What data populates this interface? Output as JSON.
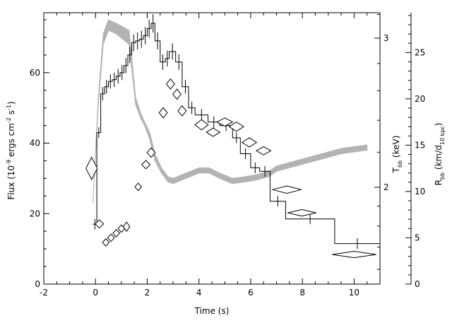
{
  "chart_data": {
    "type": "line",
    "xlabel": "Time (s)",
    "xlim": [
      -2,
      11
    ],
    "x_ticks": [
      -2,
      0,
      2,
      4,
      6,
      8,
      10
    ],
    "axes": {
      "flux": {
        "label_main": "Flux (10",
        "label_exp1": "-9",
        "label_mid": " ergs cm",
        "label_exp2": "-2",
        "label_mid2": " s",
        "label_exp3": "-1",
        "label_end": ")",
        "ylim": [
          0,
          77
        ],
        "ticks": [
          0,
          20,
          40,
          60
        ]
      },
      "tbb": {
        "label_main": "T",
        "label_sub": "bb",
        "label_end": " (keV)",
        "ticks": [
          2,
          3
        ]
      },
      "rbb": {
        "label_main": "R",
        "label_sub1": "bb",
        "label_mid": " (km/d",
        "label_sub2": "10 kpc",
        "label_end": ")",
        "ylim": [
          0,
          29.3
        ],
        "ticks": [
          0,
          5,
          10,
          15,
          20,
          25
        ]
      }
    },
    "series": [
      {
        "style": "histogram",
        "color": "#000000",
        "steps": [
          [
            -0.1,
            0.05,
            17
          ],
          [
            0.05,
            0.2,
            43
          ],
          [
            0.2,
            0.35,
            54
          ],
          [
            0.35,
            0.5,
            56
          ],
          [
            0.5,
            0.65,
            57.5
          ],
          [
            0.65,
            0.8,
            58
          ],
          [
            0.8,
            0.95,
            59
          ],
          [
            0.95,
            1.1,
            60
          ],
          [
            1.1,
            1.25,
            62
          ],
          [
            1.25,
            1.4,
            65
          ],
          [
            1.4,
            1.55,
            68.5
          ],
          [
            1.55,
            1.7,
            69
          ],
          [
            1.7,
            1.85,
            69.5
          ],
          [
            1.85,
            2.0,
            70.5
          ],
          [
            2.0,
            2.15,
            72.5
          ],
          [
            2.15,
            2.3,
            74
          ],
          [
            2.3,
            2.5,
            69
          ],
          [
            2.5,
            2.7,
            63
          ],
          [
            2.7,
            2.85,
            64
          ],
          [
            2.85,
            3.1,
            66
          ],
          [
            3.1,
            3.35,
            63
          ],
          [
            3.35,
            3.6,
            56
          ],
          [
            3.6,
            3.85,
            50
          ],
          [
            3.85,
            4.35,
            48
          ],
          [
            4.35,
            4.8,
            46
          ],
          [
            4.8,
            5.3,
            45
          ],
          [
            5.3,
            5.6,
            41.5
          ],
          [
            5.6,
            6.0,
            37
          ],
          [
            6.0,
            6.35,
            33
          ],
          [
            6.35,
            6.75,
            32
          ],
          [
            6.75,
            7.35,
            23.5
          ],
          [
            7.35,
            9.25,
            18.5
          ],
          [
            9.25,
            11.0,
            11.5
          ]
        ]
      },
      {
        "style": "band",
        "color": "#b3b3b3",
        "axis": "tbb_flux_units",
        "points": [
          [
            -0.1,
            23,
            23
          ],
          [
            0.1,
            50,
            52
          ],
          [
            0.3,
            68,
            71
          ],
          [
            0.5,
            72,
            75
          ],
          [
            0.8,
            71,
            74
          ],
          [
            1.05,
            69.5,
            73
          ],
          [
            1.3,
            68,
            72
          ],
          [
            1.55,
            51,
            53
          ],
          [
            1.75,
            47,
            48.5
          ],
          [
            1.9,
            45,
            46
          ],
          [
            2.1,
            41,
            43
          ],
          [
            2.3,
            35,
            37
          ],
          [
            2.55,
            31.5,
            33
          ],
          [
            2.8,
            29,
            30.5
          ],
          [
            3.0,
            28.5,
            30
          ],
          [
            3.5,
            30,
            31.5
          ],
          [
            4.0,
            31.5,
            33
          ],
          [
            4.4,
            31.5,
            33
          ],
          [
            4.8,
            30,
            31.5
          ],
          [
            5.3,
            28.5,
            30
          ],
          [
            5.8,
            29,
            30.5
          ],
          [
            6.2,
            29.5,
            31
          ],
          [
            6.7,
            30.5,
            32
          ],
          [
            7.0,
            32,
            33.5
          ],
          [
            7.5,
            33,
            34.5
          ],
          [
            8.0,
            34,
            35.5
          ],
          [
            8.5,
            35,
            36.5
          ],
          [
            9.0,
            36,
            37.5
          ],
          [
            9.5,
            37,
            38.5
          ],
          [
            10.0,
            37.5,
            39
          ],
          [
            10.5,
            38,
            39.5
          ]
        ]
      },
      {
        "style": "diamonds",
        "color": "#000000",
        "axis": "rbb",
        "points": [
          [
            -0.15,
            12.5,
            0.22,
            1.2
          ],
          [
            0.15,
            6.5,
            0.16,
            0.45
          ],
          [
            0.4,
            4.5,
            0.13,
            0.4
          ],
          [
            0.6,
            5.0,
            0.13,
            0.4
          ],
          [
            0.8,
            5.5,
            0.13,
            0.4
          ],
          [
            1.0,
            6.0,
            0.13,
            0.4
          ],
          [
            1.2,
            6.2,
            0.13,
            0.5
          ],
          [
            1.65,
            10.5,
            0.13,
            0.4
          ],
          [
            1.95,
            12.9,
            0.16,
            0.45
          ],
          [
            2.15,
            14.2,
            0.16,
            0.5
          ],
          [
            2.62,
            18.5,
            0.16,
            0.55
          ],
          [
            2.9,
            21.6,
            0.16,
            0.55
          ],
          [
            3.15,
            20.5,
            0.16,
            0.55
          ],
          [
            3.35,
            18.7,
            0.16,
            0.55
          ],
          [
            4.1,
            17.2,
            0.26,
            0.55
          ],
          [
            4.55,
            16.4,
            0.26,
            0.45
          ],
          [
            5.0,
            17.5,
            0.3,
            0.45
          ],
          [
            5.45,
            17.0,
            0.28,
            0.5
          ],
          [
            5.95,
            15.3,
            0.28,
            0.5
          ],
          [
            6.5,
            14.4,
            0.28,
            0.45
          ],
          [
            7.4,
            10.2,
            0.55,
            0.4
          ],
          [
            7.98,
            7.7,
            0.55,
            0.35
          ],
          [
            10.0,
            3.2,
            0.85,
            0.35
          ]
        ]
      }
    ]
  }
}
